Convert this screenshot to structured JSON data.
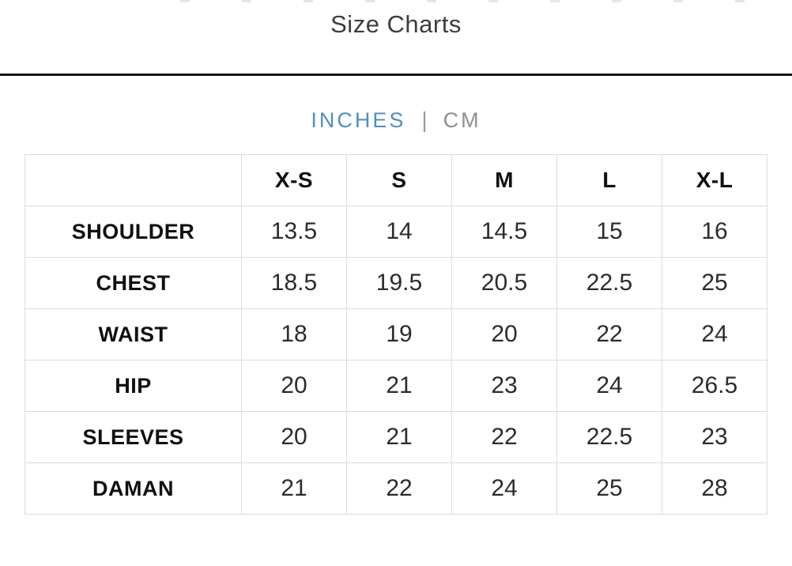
{
  "page": {
    "title": "Size Charts"
  },
  "unit_toggle": {
    "separator": "|",
    "active_color": "#4d90c4",
    "inactive_color": "#8d8d8d",
    "options": [
      {
        "label": "INCHES",
        "active": true
      },
      {
        "label": "CM",
        "active": false
      }
    ]
  },
  "size_chart": {
    "columns": [
      "",
      "X-S",
      "S",
      "M",
      "L",
      "X-L"
    ],
    "rows": [
      {
        "label": "SHOULDER",
        "values": [
          "13.5",
          "14",
          "14.5",
          "15",
          "16"
        ]
      },
      {
        "label": "CHEST",
        "values": [
          "18.5",
          "19.5",
          "20.5",
          "22.5",
          "25"
        ]
      },
      {
        "label": "WAIST",
        "values": [
          "18",
          "19",
          "20",
          "22",
          "24"
        ]
      },
      {
        "label": "HIP",
        "values": [
          "20",
          "21",
          "23",
          "24",
          "26.5"
        ]
      },
      {
        "label": "SLEEVES",
        "values": [
          "20",
          "21",
          "22",
          "22.5",
          "23"
        ]
      },
      {
        "label": "DAMAN",
        "values": [
          "21",
          "22",
          "24",
          "25",
          "28"
        ]
      }
    ]
  }
}
